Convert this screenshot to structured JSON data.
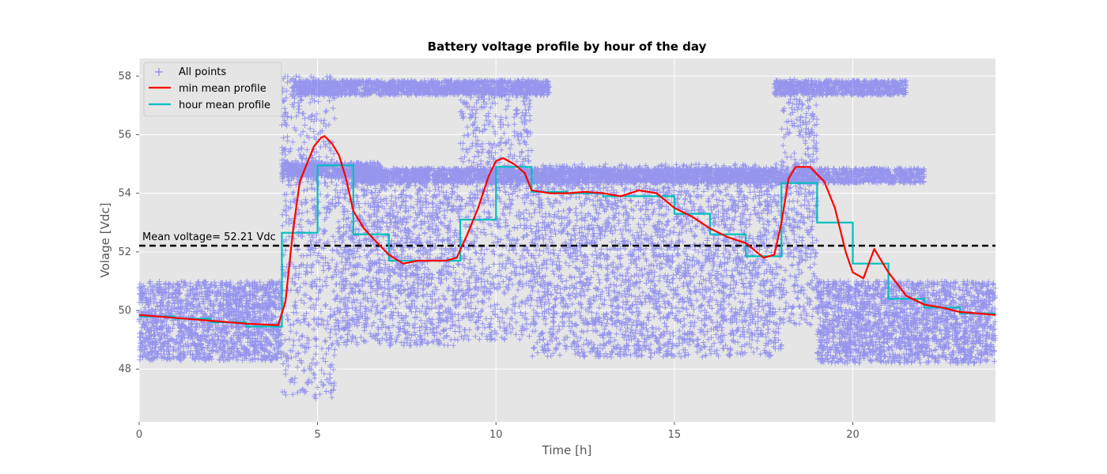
{
  "chart_data": {
    "type": "scatter",
    "title": "Battery voltage profile by hour of the day",
    "xlabel": "Time [h]",
    "ylabel": "Volage [Vdc]",
    "xlim": [
      0,
      24
    ],
    "ylim": [
      46.2,
      58.6
    ],
    "xticks": [
      0,
      5,
      10,
      15,
      20
    ],
    "yticks": [
      48,
      50,
      52,
      54,
      56,
      58
    ],
    "grid": true,
    "legend_position": "top-left",
    "mean_voltage": 52.21,
    "annotation": "Mean voltage= 52.21 Vdc",
    "colors": {
      "background": "#e5e5e5",
      "points": "#0000ff",
      "min_mean": "#ff0000",
      "hour_mean": "#00bfbf",
      "mean_line": "#000000"
    },
    "series": [
      {
        "name": "All points",
        "kind": "scatter-cloud",
        "bands": [
          {
            "x": [
              0,
              4
            ],
            "y": [
              48.3,
              51.0
            ]
          },
          {
            "x": [
              4,
              5.5
            ],
            "y": [
              47.0,
              58.0
            ]
          },
          {
            "x": [
              5.5,
              9
            ],
            "y": [
              48.8,
              54.8
            ]
          },
          {
            "x": [
              9,
              11
            ],
            "y": [
              49.0,
              57.9
            ]
          },
          {
            "x": [
              11,
              18
            ],
            "y": [
              48.4,
              55.0
            ]
          },
          {
            "x": [
              18,
              19
            ],
            "y": [
              49.5,
              57.9
            ]
          },
          {
            "x": [
              19,
              24
            ],
            "y": [
              48.2,
              51.0
            ]
          }
        ],
        "upper_plateau": [
          {
            "x": [
              4.3,
              11.5
            ],
            "y": 57.6
          },
          {
            "x": [
              17.8,
              21.5
            ],
            "y": 57.6
          }
        ],
        "mid_plateau": [
          {
            "x": [
              4.0,
              6.8
            ],
            "y": 54.8
          },
          {
            "x": [
              6.0,
              22.0
            ],
            "y": 54.6
          }
        ]
      },
      {
        "name": "min mean profile",
        "x": [
          0,
          1,
          2,
          3,
          3.9,
          4.1,
          4.3,
          4.5,
          4.7,
          4.9,
          5.1,
          5.2,
          5.4,
          5.6,
          5.8,
          6.0,
          6.3,
          6.6,
          7.0,
          7.4,
          7.8,
          8.2,
          8.6,
          8.9,
          9.2,
          9.5,
          9.8,
          10.0,
          10.2,
          10.5,
          10.8,
          11.0,
          11.5,
          12.0,
          12.5,
          13.0,
          13.5,
          14.0,
          14.5,
          15.0,
          15.5,
          16.0,
          16.5,
          17.0,
          17.5,
          17.8,
          18.0,
          18.2,
          18.4,
          18.8,
          19.2,
          19.5,
          19.8,
          20.0,
          20.3,
          20.6,
          21.0,
          21.5,
          22.0,
          22.5,
          23.0,
          23.5,
          24.0
        ],
        "y": [
          49.85,
          49.75,
          49.65,
          49.55,
          49.5,
          50.3,
          52.6,
          54.4,
          55.0,
          55.6,
          55.9,
          55.95,
          55.7,
          55.3,
          54.5,
          53.4,
          52.8,
          52.4,
          51.9,
          51.6,
          51.7,
          51.7,
          51.7,
          51.8,
          52.6,
          53.5,
          54.6,
          55.1,
          55.2,
          55.0,
          54.7,
          54.1,
          54.0,
          54.0,
          54.05,
          54.0,
          53.9,
          54.1,
          54.0,
          53.5,
          53.2,
          52.8,
          52.5,
          52.3,
          51.8,
          51.9,
          53.0,
          54.5,
          54.9,
          54.9,
          54.4,
          53.5,
          52.0,
          51.3,
          51.1,
          52.1,
          51.3,
          50.5,
          50.2,
          50.1,
          49.95,
          49.9,
          49.85
        ]
      },
      {
        "name": "hour mean profile",
        "kind": "step",
        "x": [
          0,
          1,
          2,
          3,
          4,
          5,
          6,
          7,
          8,
          9,
          10,
          11,
          12,
          13,
          14,
          15,
          16,
          17,
          18,
          19,
          20,
          21,
          22,
          23
        ],
        "y": [
          49.8,
          49.72,
          49.6,
          49.45,
          52.65,
          54.95,
          52.6,
          51.7,
          51.7,
          53.1,
          54.9,
          54.05,
          54.0,
          53.9,
          53.9,
          53.3,
          52.6,
          51.85,
          54.35,
          53.0,
          51.6,
          50.4,
          50.1,
          49.9
        ]
      }
    ]
  }
}
